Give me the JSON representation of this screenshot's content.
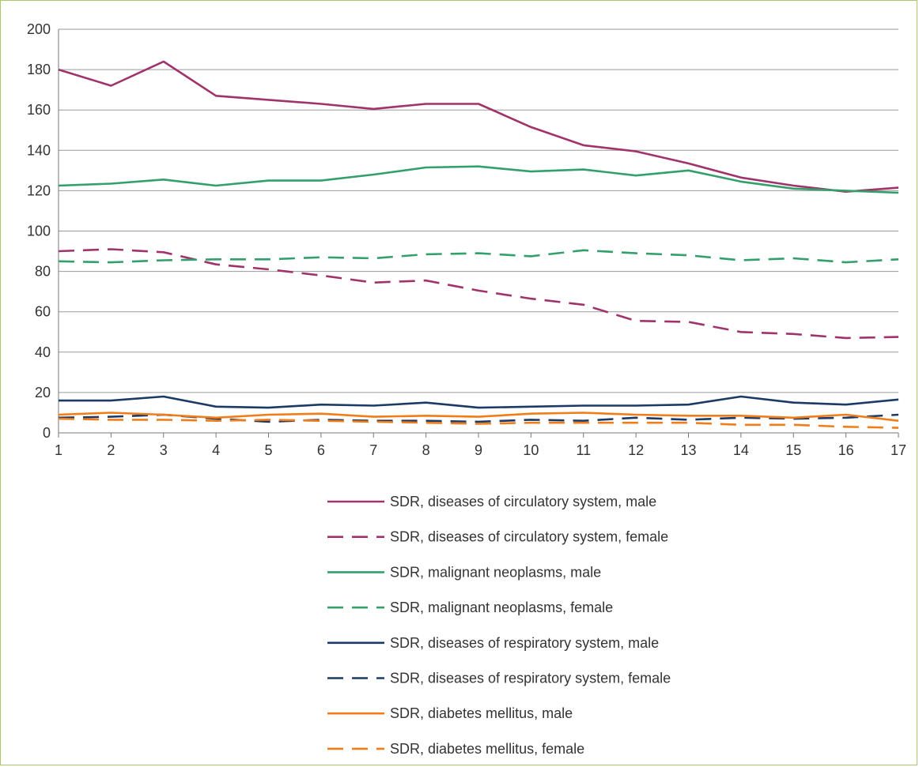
{
  "chart_data": {
    "type": "line",
    "title": "",
    "xlabel": "",
    "ylabel": "",
    "x": [
      1,
      2,
      3,
      4,
      5,
      6,
      7,
      8,
      9,
      10,
      11,
      12,
      13,
      14,
      15,
      16,
      17
    ],
    "ylim": [
      0,
      200
    ],
    "yticks": [
      0,
      20,
      40,
      60,
      80,
      100,
      120,
      140,
      160,
      180,
      200
    ],
    "grid": "horizontal",
    "legend_position": "bottom",
    "series": [
      {
        "name": "SDR, diseases of circulatory system, male",
        "color": "#a0336b",
        "dash": "solid",
        "values": [
          180,
          172,
          184,
          167,
          165,
          163,
          160.5,
          163,
          163,
          151.5,
          142.5,
          139.5,
          133.5,
          126.5,
          122.5,
          119.5,
          121.5
        ]
      },
      {
        "name": "SDR, diseases of circulatory system, female",
        "color": "#a0336b",
        "dash": "dashed",
        "values": [
          90,
          91,
          89.5,
          83.5,
          81,
          78,
          74.5,
          75.5,
          70.5,
          66.5,
          63.5,
          55.5,
          55,
          50,
          49,
          47,
          47.5
        ]
      },
      {
        "name": "SDR, malignant neoplasms, male",
        "color": "#33a06b",
        "dash": "solid",
        "values": [
          122.5,
          123.5,
          125.5,
          122.5,
          125,
          125,
          128,
          131.5,
          132,
          129.5,
          130.5,
          127.5,
          130,
          124.5,
          121,
          120,
          119
        ]
      },
      {
        "name": "SDR, malignant neoplasms, female",
        "color": "#33a06b",
        "dash": "dashed",
        "values": [
          85,
          84.5,
          85.5,
          86,
          86,
          87,
          86.5,
          88.5,
          89,
          87.5,
          90.5,
          89,
          88,
          85.5,
          86.5,
          84.5,
          86
        ]
      },
      {
        "name": "SDR, diseases of respiratory system, male",
        "color": "#1c3a66",
        "dash": "solid",
        "values": [
          16,
          16,
          18,
          13,
          12.5,
          14,
          13.5,
          15,
          12.5,
          13,
          13.5,
          13.5,
          14,
          18,
          15,
          14,
          16.5
        ]
      },
      {
        "name": "SDR, diseases of respiratory system, female",
        "color": "#1c3a66",
        "dash": "dashed",
        "values": [
          7.5,
          8,
          9,
          7,
          5.5,
          6.5,
          6,
          6,
          5.5,
          6.5,
          6,
          7.5,
          6.5,
          7.5,
          7,
          7.5,
          9
        ]
      },
      {
        "name": "SDR, diabetes mellitus, male",
        "color": "#f07d1a",
        "dash": "solid",
        "values": [
          9,
          10,
          9,
          7.5,
          9,
          9.5,
          8,
          8.5,
          8,
          9.5,
          10,
          9,
          8.5,
          8.5,
          7.5,
          9,
          6
        ]
      },
      {
        "name": "SDR, diabetes mellitus, female",
        "color": "#f07d1a",
        "dash": "dashed",
        "values": [
          7,
          6.5,
          6.5,
          6,
          6.5,
          6,
          5.5,
          5,
          4.5,
          5,
          5,
          5,
          5,
          4,
          4,
          3,
          2.5
        ]
      }
    ]
  }
}
